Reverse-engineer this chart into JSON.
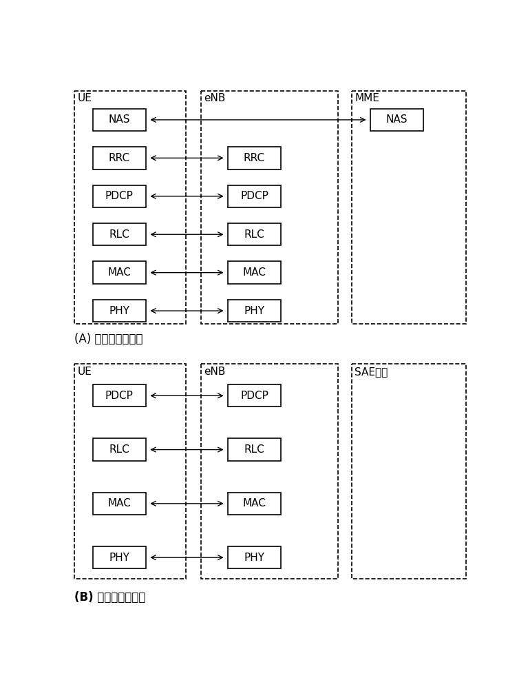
{
  "bg_color": "#ffffff",
  "font_family": "SimSun",
  "fallback_fonts": [
    "DejaVu Sans",
    "Arial Unicode MS",
    "WenQuanYi Micro Hei"
  ],
  "diagram_A": {
    "title": "(A) 控制平面协议栈",
    "ue_label": "UE",
    "enb_label": "eNB",
    "mme_label": "MME",
    "ue_rows": [
      "NAS",
      "RRC",
      "PDCP",
      "RLC",
      "MAC",
      "PHY"
    ],
    "enb_rows": [
      "RRC",
      "PDCP",
      "RLC",
      "MAC",
      "PHY"
    ],
    "mme_rows": [
      "NAS"
    ]
  },
  "diagram_B": {
    "title": "(B) 用户平面协议栈",
    "ue_label": "UE",
    "enb_label": "eNB",
    "sae_label": "SAE网关",
    "ue_rows": [
      "PDCP",
      "RLC",
      "MAC",
      "PHY"
    ],
    "enb_rows": [
      "PDCP",
      "RLC",
      "MAC",
      "PHY"
    ]
  }
}
